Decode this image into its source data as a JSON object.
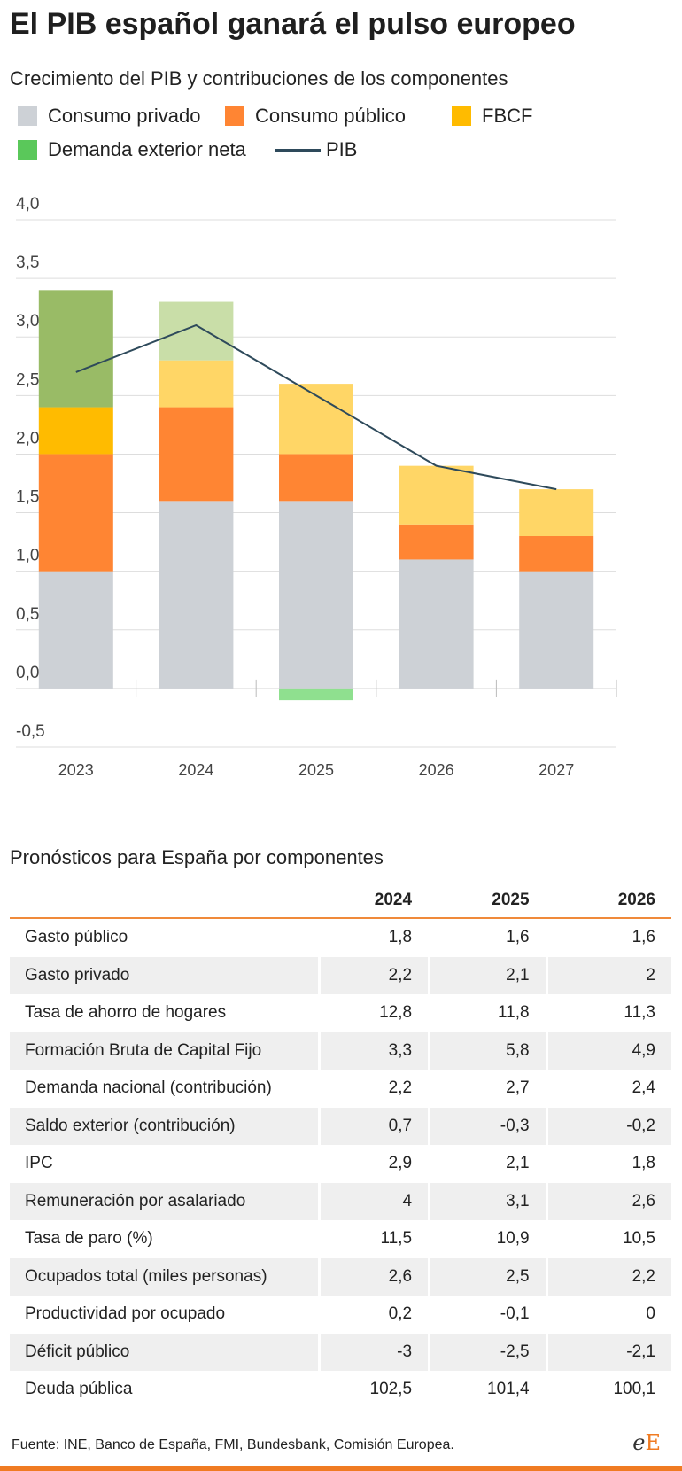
{
  "title": "El PIB español ganará el pulso europeo",
  "subtitle": "Crecimiento del PIB y contribuciones de los componentes",
  "legend": [
    {
      "label": "Consumo privado",
      "color": "#cdd1d6",
      "kind": "box"
    },
    {
      "label": "Consumo público",
      "color": "#ff8533",
      "kind": "box"
    },
    {
      "label": "FBCF",
      "color": "#ffbb00",
      "kind": "box"
    },
    {
      "label": "Demanda exterior neta",
      "color": "#5ac85a",
      "kind": "box"
    },
    {
      "label": "PIB",
      "color": "#2e4a5b",
      "kind": "line"
    }
  ],
  "chart_data": {
    "type": "bar",
    "stacked": true,
    "categories": [
      "2023",
      "2024",
      "2025",
      "2026",
      "2027"
    ],
    "series": [
      {
        "name": "Consumo privado",
        "color": "#cdd1d6",
        "values": [
          1.0,
          1.6,
          1.6,
          1.1,
          1.0
        ]
      },
      {
        "name": "Consumo público",
        "color": "#ff8533",
        "values": [
          1.0,
          0.8,
          0.4,
          0.3,
          0.3
        ]
      },
      {
        "name": "FBCF",
        "color": "#ffbb00",
        "projected_color": "#ffd666",
        "values": [
          0.4,
          0.4,
          0.6,
          0.5,
          0.4
        ]
      },
      {
        "name": "Demanda exterior neta",
        "color": "#99bb66",
        "projected_color": "#c9dea8",
        "negative_color": "#8fe08f",
        "values": [
          1.0,
          0.5,
          -0.1,
          0.0,
          0.0
        ]
      }
    ],
    "line": {
      "name": "PIB",
      "color": "#2e4a5b",
      "values": [
        2.7,
        3.1,
        2.5,
        1.9,
        1.7
      ]
    },
    "y_ticks": [
      "4,0",
      "3,5",
      "3,0",
      "2,5",
      "2,0",
      "1,5",
      "1,0",
      "0,5",
      "0,0",
      "-0,5"
    ],
    "y_tick_values": [
      4.0,
      3.5,
      3.0,
      2.5,
      2.0,
      1.5,
      1.0,
      0.5,
      0.0,
      -0.5
    ],
    "ylim": [
      -0.5,
      4.0
    ],
    "grid": true,
    "legend_position": "top"
  },
  "table": {
    "title": "Pronósticos para España por componentes",
    "columns": [
      "",
      "2024",
      "2025",
      "2026"
    ],
    "rows": [
      [
        "Gasto público",
        "1,8",
        "1,6",
        "1,6"
      ],
      [
        "Gasto privado",
        "2,2",
        "2,1",
        "2"
      ],
      [
        "Tasa de ahorro de hogares",
        "12,8",
        "11,8",
        "11,3"
      ],
      [
        "Formación Bruta de Capital Fijo",
        "3,3",
        "5,8",
        "4,9"
      ],
      [
        "Demanda nacional (contribución)",
        "2,2",
        "2,7",
        "2,4"
      ],
      [
        "Saldo exterior (contribución)",
        "0,7",
        "-0,3",
        "-0,2"
      ],
      [
        "IPC",
        "2,9",
        "2,1",
        "1,8"
      ],
      [
        "Remuneración por asalariado",
        "4",
        "3,1",
        "2,6"
      ],
      [
        "Tasa de paro (%)",
        "11,5",
        "10,9",
        "10,5"
      ],
      [
        "Ocupados total (miles personas)",
        "2,6",
        "2,5",
        "2,2"
      ],
      [
        "Productividad por ocupado",
        "0,2",
        "-0,1",
        "0"
      ],
      [
        "Déficit público",
        "-3",
        "-2,5",
        "-2,1"
      ],
      [
        "Deuda pública",
        "102,5",
        "101,4",
        "100,1"
      ]
    ]
  },
  "source": "Fuente: INE, Banco de España, FMI, Bundesbank, Comisión Europea.",
  "logo": {
    "part1": "e",
    "part2": "E"
  },
  "colors": {
    "accent": "#f07b22",
    "grid": "#dddddd",
    "axis_text": "#444444",
    "table_header_rule": "#f08a3a",
    "row_shade": "#efefef"
  }
}
